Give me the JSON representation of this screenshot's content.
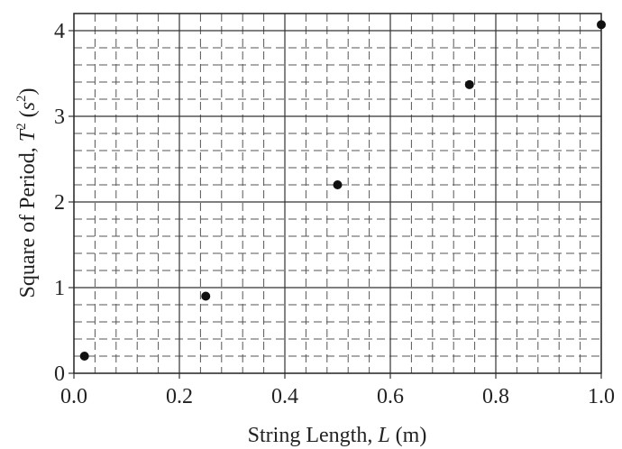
{
  "chart_data": {
    "type": "scatter",
    "xlabel": {
      "prefix": "String Length, ",
      "var": "L",
      "suffix": " (m)"
    },
    "ylabel": {
      "prefix": "Square of Period, ",
      "var": "T",
      "sup": "2",
      "unit_open": " (",
      "unit_var": "s",
      "unit_sup": "2",
      "unit_close": ")"
    },
    "xlim": [
      0,
      1.0
    ],
    "ylim": [
      0,
      4.2
    ],
    "x_ticks": [
      "0.0",
      "0.2",
      "0.4",
      "0.6",
      "0.8",
      "1.0"
    ],
    "y_ticks": [
      "0",
      "1",
      "2",
      "3",
      "4"
    ],
    "grid": "major solid, minor dashed",
    "points": [
      {
        "x": 0.02,
        "y": 0.2
      },
      {
        "x": 0.25,
        "y": 0.9
      },
      {
        "x": 0.5,
        "y": 2.2
      },
      {
        "x": 0.75,
        "y": 3.37
      },
      {
        "x": 1.0,
        "y": 4.07
      }
    ]
  }
}
